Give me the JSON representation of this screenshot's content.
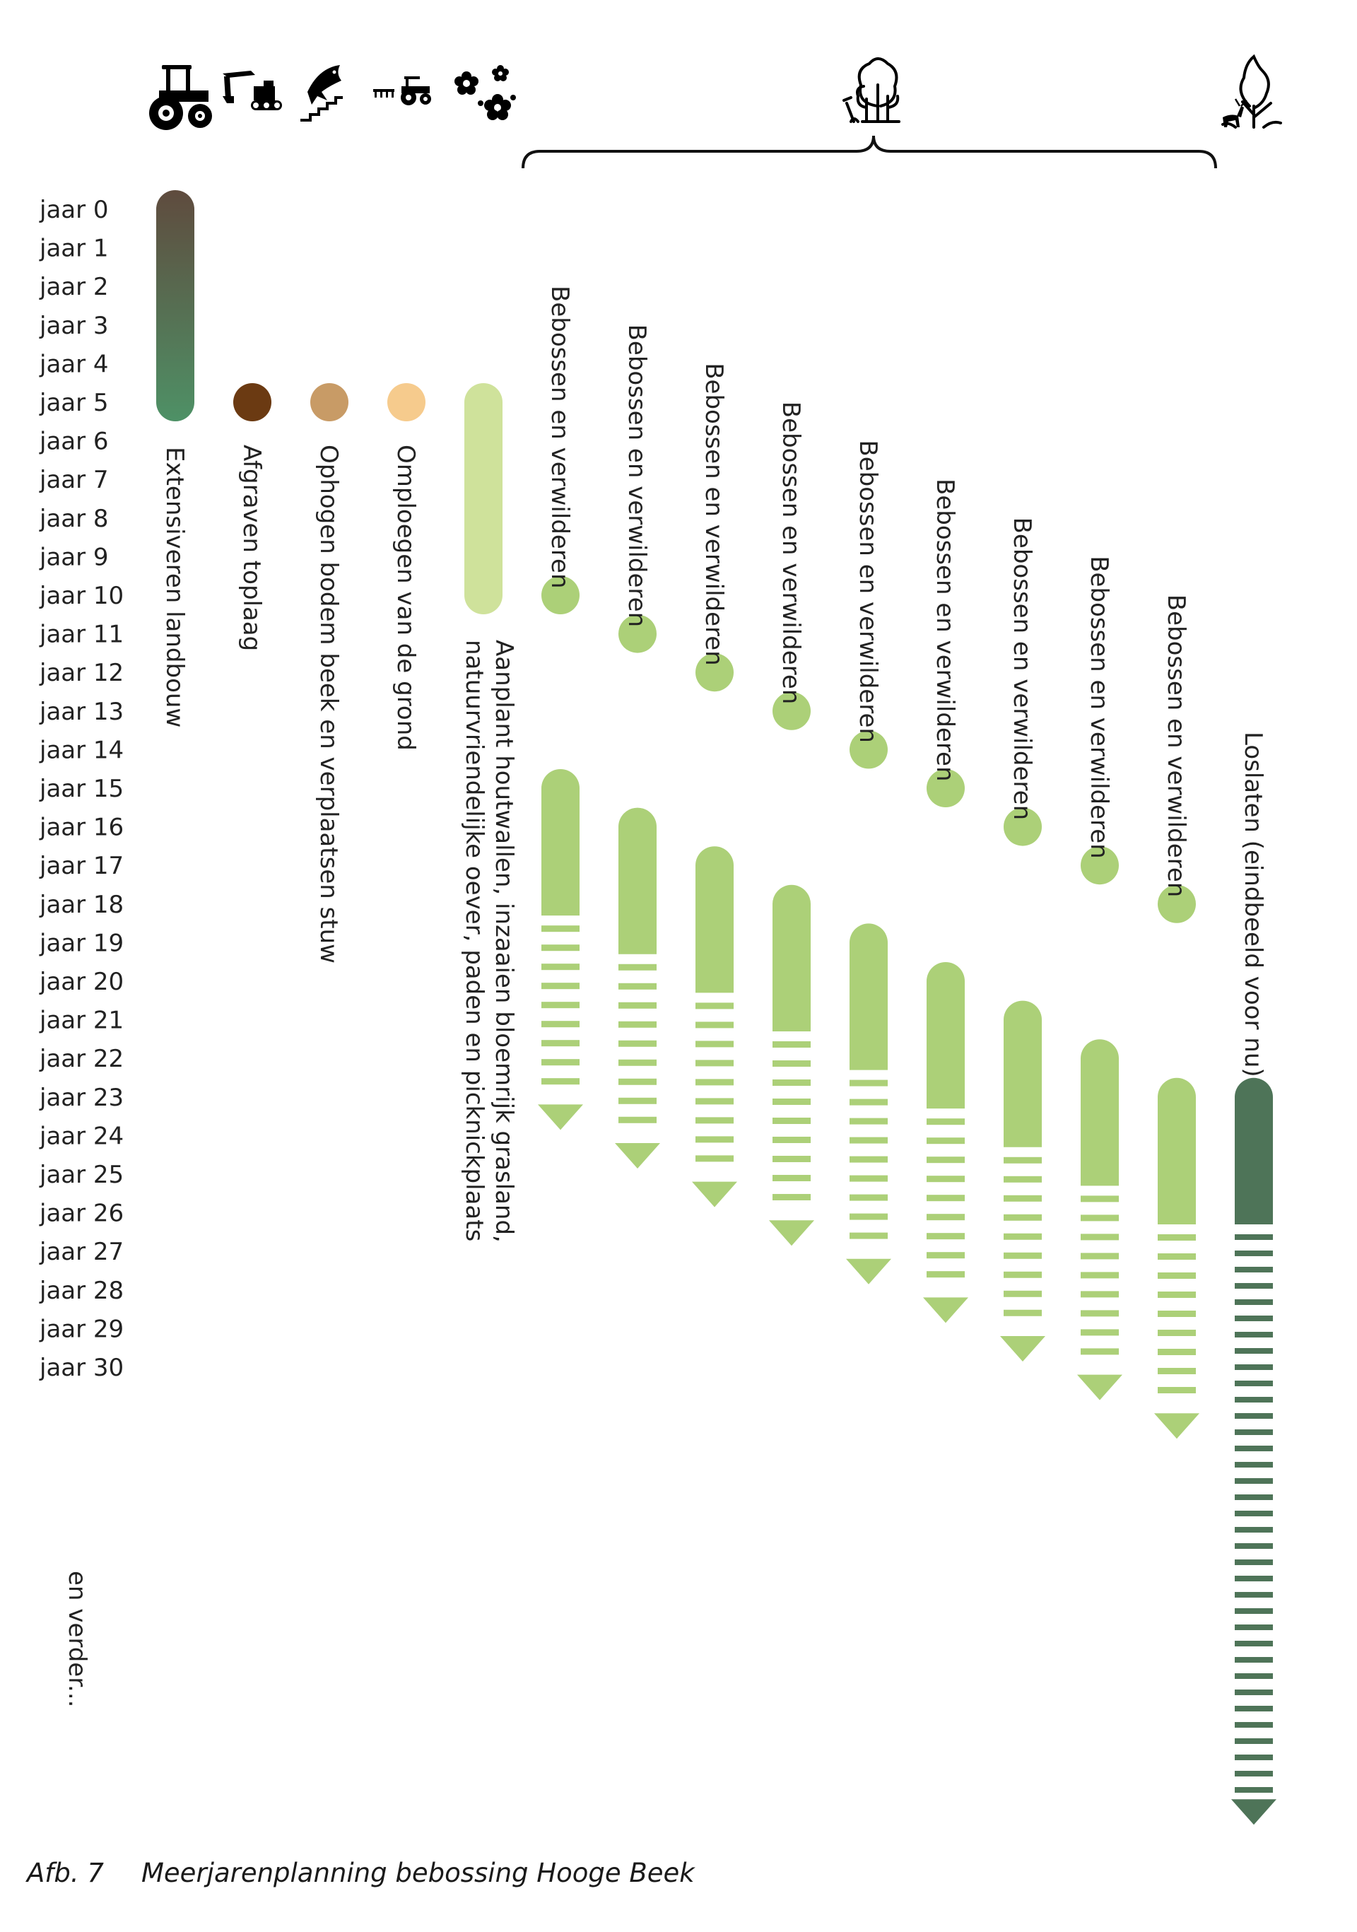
{
  "years": [
    "jaar 0",
    "jaar 1",
    "jaar 2",
    "jaar 3",
    "jaar 4",
    "jaar 5",
    "jaar 6",
    "jaar 7",
    "jaar 8",
    "jaar 9",
    "jaar 10",
    "jaar 11",
    "jaar 12",
    "jaar 13",
    "jaar 14",
    "jaar 15",
    "jaar 16",
    "jaar 17",
    "jaar 18",
    "jaar 19",
    "jaar 20",
    "jaar 21",
    "jaar 22",
    "jaar 23",
    "jaar 24",
    "jaar 25",
    "jaar 26",
    "jaar 27",
    "jaar 28",
    "jaar 29",
    "jaar 30"
  ],
  "en_verder": "en verder...",
  "icons": [
    "tractor-icon",
    "excavator-icon",
    "fish-stairs-icon",
    "plough-tractor-icon",
    "flowers-icon",
    "trees-planting-icon",
    "wild-forest-deer-icon"
  ],
  "phases": [
    {
      "label": "Extensiveren landbouw",
      "type": "bar",
      "start": 0,
      "end": 5,
      "color_top": "#5f4b3e",
      "color_bottom": "#4e9166"
    },
    {
      "label": "Afgraven toplaag",
      "type": "dot",
      "year": 5,
      "color": "#6b3a12"
    },
    {
      "label": "Ophogen bodem beek en verplaatsen stuw",
      "type": "dot",
      "year": 5,
      "color": "#c89b66"
    },
    {
      "label": "Omploegen van de grond",
      "type": "dot",
      "year": 5,
      "color": "#f6cb8d"
    },
    {
      "label_line1": "Aanplant houtwallen, inzaaien bloemrijk grasland,",
      "label_line2": "natuurvriendelijke oever, paden en picknickplaats",
      "type": "bar",
      "start": 5,
      "end": 10,
      "color": "#cfe29b"
    }
  ],
  "reforest": {
    "label": "Bebossen en verwilderen",
    "color": "#acd078",
    "plantings": [
      {
        "plant_year": 10,
        "solid": [
          15,
          18.3
        ],
        "arrow_to": 24
      },
      {
        "plant_year": 11,
        "solid": [
          16,
          19.3
        ],
        "arrow_to": 25
      },
      {
        "plant_year": 12,
        "solid": [
          17,
          20.3
        ],
        "arrow_to": 26
      },
      {
        "plant_year": 13,
        "solid": [
          18,
          21.3
        ],
        "arrow_to": 27
      },
      {
        "plant_year": 14,
        "solid": [
          19,
          22.3
        ],
        "arrow_to": 28
      },
      {
        "plant_year": 15,
        "solid": [
          20,
          23.3
        ],
        "arrow_to": 29
      },
      {
        "plant_year": 16,
        "solid": [
          21,
          24.3
        ],
        "arrow_to": 30
      },
      {
        "plant_year": 17,
        "solid": [
          22,
          25.3
        ],
        "arrow_to": 31
      },
      {
        "plant_year": 18,
        "solid": [
          23,
          26.3
        ],
        "arrow_to": 32
      }
    ]
  },
  "release": {
    "label": "Loslaten (eindbeeld voor nu)",
    "color": "#4e7458",
    "solid": [
      23,
      26.3
    ],
    "arrow_to": 42
  },
  "caption": {
    "number": "Afb. 7",
    "title": "Meerjarenplanning bebossing Hooge Beek"
  }
}
